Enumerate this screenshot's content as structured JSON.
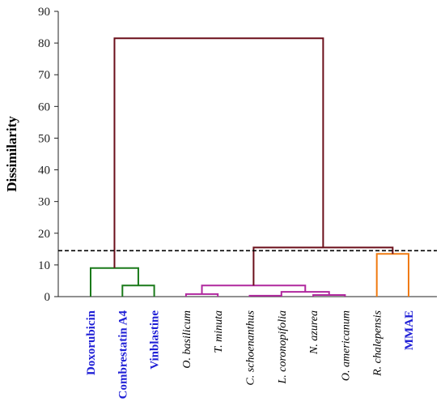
{
  "chart_data": {
    "type": "dendrogram",
    "ylabel": "Dissimilarity",
    "ylim": [
      0,
      90
    ],
    "yticks": [
      "0",
      "10",
      "20",
      "30",
      "40",
      "50",
      "60",
      "70",
      "80",
      "90"
    ],
    "cutoff": 14.5,
    "leaves": [
      {
        "label": "Doxorubicin",
        "style": "bold",
        "color": "#1f1fd6"
      },
      {
        "label": "Combrestatin A4",
        "style": "bold",
        "color": "#1f1fd6"
      },
      {
        "label": "Vinblastine",
        "style": "bold",
        "color": "#1f1fd6"
      },
      {
        "label": "O. basilicum",
        "style": "italic",
        "color": "#000000"
      },
      {
        "label": "T. minuta",
        "style": "italic",
        "color": "#000000"
      },
      {
        "label": "C. schoenanthus",
        "style": "italic",
        "color": "#000000"
      },
      {
        "label": "L. coronopifolia",
        "style": "italic",
        "color": "#000000"
      },
      {
        "label": "N. azurea",
        "style": "italic",
        "color": "#000000"
      },
      {
        "label": "O. americanum",
        "style": "italic",
        "color": "#000000"
      },
      {
        "label": "R. chalepensis",
        "style": "italic",
        "color": "#000000"
      },
      {
        "label": "MMAE",
        "style": "bold",
        "color": "#1f1fd6"
      }
    ],
    "links": [
      {
        "left": 1,
        "right": 2,
        "height": 3.5,
        "color": "#1a7a1a"
      },
      {
        "left": 0,
        "right": 1.5,
        "height": 9.0,
        "color": "#1a7a1a"
      },
      {
        "left": 3,
        "right": 4,
        "height": 0.8,
        "color": "#b0289e"
      },
      {
        "left": 5,
        "right": 6,
        "height": 0.3,
        "color": "#b0289e"
      },
      {
        "left": 7,
        "right": 8,
        "height": 0.5,
        "color": "#b0289e"
      },
      {
        "left": 6,
        "right": 7.5,
        "height": 1.5,
        "color": "#b0289e"
      },
      {
        "left": 3.5,
        "right": 6.75,
        "height": 3.5,
        "color": "#b0289e"
      },
      {
        "left": 9,
        "right": 10,
        "height": 13.5,
        "color": "#f07a10"
      },
      {
        "left": 5.125,
        "right": 9.5,
        "height": 15.5,
        "color": "#6b0f1a"
      },
      {
        "left": 0.75,
        "right": 7.3125,
        "height": 81.5,
        "color": "#6b0f1a"
      }
    ],
    "grid": false
  }
}
